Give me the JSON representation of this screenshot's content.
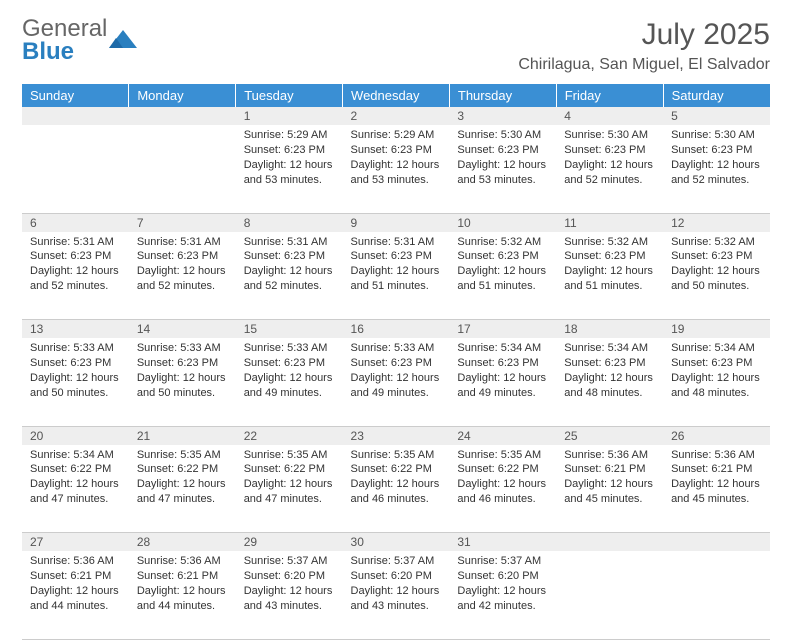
{
  "logo": {
    "line1": "General",
    "line2": "Blue"
  },
  "title": "July 2025",
  "location": "Chirilagua, San Miguel, El Salvador",
  "colors": {
    "header_bg": "#3a8fd4",
    "header_text": "#ffffff",
    "daynum_bg": "#eeeeee",
    "text": "#333333",
    "logo_gray": "#666666",
    "logo_blue": "#2a7fbf"
  },
  "day_headers": [
    "Sunday",
    "Monday",
    "Tuesday",
    "Wednesday",
    "Thursday",
    "Friday",
    "Saturday"
  ],
  "weeks": [
    {
      "nums": [
        "",
        "",
        "1",
        "2",
        "3",
        "4",
        "5"
      ],
      "cells": [
        null,
        null,
        {
          "sunrise": "5:29 AM",
          "sunset": "6:23 PM",
          "daylight": "12 hours and 53 minutes."
        },
        {
          "sunrise": "5:29 AM",
          "sunset": "6:23 PM",
          "daylight": "12 hours and 53 minutes."
        },
        {
          "sunrise": "5:30 AM",
          "sunset": "6:23 PM",
          "daylight": "12 hours and 53 minutes."
        },
        {
          "sunrise": "5:30 AM",
          "sunset": "6:23 PM",
          "daylight": "12 hours and 52 minutes."
        },
        {
          "sunrise": "5:30 AM",
          "sunset": "6:23 PM",
          "daylight": "12 hours and 52 minutes."
        }
      ]
    },
    {
      "nums": [
        "6",
        "7",
        "8",
        "9",
        "10",
        "11",
        "12"
      ],
      "cells": [
        {
          "sunrise": "5:31 AM",
          "sunset": "6:23 PM",
          "daylight": "12 hours and 52 minutes."
        },
        {
          "sunrise": "5:31 AM",
          "sunset": "6:23 PM",
          "daylight": "12 hours and 52 minutes."
        },
        {
          "sunrise": "5:31 AM",
          "sunset": "6:23 PM",
          "daylight": "12 hours and 52 minutes."
        },
        {
          "sunrise": "5:31 AM",
          "sunset": "6:23 PM",
          "daylight": "12 hours and 51 minutes."
        },
        {
          "sunrise": "5:32 AM",
          "sunset": "6:23 PM",
          "daylight": "12 hours and 51 minutes."
        },
        {
          "sunrise": "5:32 AM",
          "sunset": "6:23 PM",
          "daylight": "12 hours and 51 minutes."
        },
        {
          "sunrise": "5:32 AM",
          "sunset": "6:23 PM",
          "daylight": "12 hours and 50 minutes."
        }
      ]
    },
    {
      "nums": [
        "13",
        "14",
        "15",
        "16",
        "17",
        "18",
        "19"
      ],
      "cells": [
        {
          "sunrise": "5:33 AM",
          "sunset": "6:23 PM",
          "daylight": "12 hours and 50 minutes."
        },
        {
          "sunrise": "5:33 AM",
          "sunset": "6:23 PM",
          "daylight": "12 hours and 50 minutes."
        },
        {
          "sunrise": "5:33 AM",
          "sunset": "6:23 PM",
          "daylight": "12 hours and 49 minutes."
        },
        {
          "sunrise": "5:33 AM",
          "sunset": "6:23 PM",
          "daylight": "12 hours and 49 minutes."
        },
        {
          "sunrise": "5:34 AM",
          "sunset": "6:23 PM",
          "daylight": "12 hours and 49 minutes."
        },
        {
          "sunrise": "5:34 AM",
          "sunset": "6:23 PM",
          "daylight": "12 hours and 48 minutes."
        },
        {
          "sunrise": "5:34 AM",
          "sunset": "6:23 PM",
          "daylight": "12 hours and 48 minutes."
        }
      ]
    },
    {
      "nums": [
        "20",
        "21",
        "22",
        "23",
        "24",
        "25",
        "26"
      ],
      "cells": [
        {
          "sunrise": "5:34 AM",
          "sunset": "6:22 PM",
          "daylight": "12 hours and 47 minutes."
        },
        {
          "sunrise": "5:35 AM",
          "sunset": "6:22 PM",
          "daylight": "12 hours and 47 minutes."
        },
        {
          "sunrise": "5:35 AM",
          "sunset": "6:22 PM",
          "daylight": "12 hours and 47 minutes."
        },
        {
          "sunrise": "5:35 AM",
          "sunset": "6:22 PM",
          "daylight": "12 hours and 46 minutes."
        },
        {
          "sunrise": "5:35 AM",
          "sunset": "6:22 PM",
          "daylight": "12 hours and 46 minutes."
        },
        {
          "sunrise": "5:36 AM",
          "sunset": "6:21 PM",
          "daylight": "12 hours and 45 minutes."
        },
        {
          "sunrise": "5:36 AM",
          "sunset": "6:21 PM",
          "daylight": "12 hours and 45 minutes."
        }
      ]
    },
    {
      "nums": [
        "27",
        "28",
        "29",
        "30",
        "31",
        "",
        ""
      ],
      "cells": [
        {
          "sunrise": "5:36 AM",
          "sunset": "6:21 PM",
          "daylight": "12 hours and 44 minutes."
        },
        {
          "sunrise": "5:36 AM",
          "sunset": "6:21 PM",
          "daylight": "12 hours and 44 minutes."
        },
        {
          "sunrise": "5:37 AM",
          "sunset": "6:20 PM",
          "daylight": "12 hours and 43 minutes."
        },
        {
          "sunrise": "5:37 AM",
          "sunset": "6:20 PM",
          "daylight": "12 hours and 43 minutes."
        },
        {
          "sunrise": "5:37 AM",
          "sunset": "6:20 PM",
          "daylight": "12 hours and 42 minutes."
        },
        null,
        null
      ]
    }
  ],
  "labels": {
    "sunrise": "Sunrise:",
    "sunset": "Sunset:",
    "daylight": "Daylight:"
  }
}
